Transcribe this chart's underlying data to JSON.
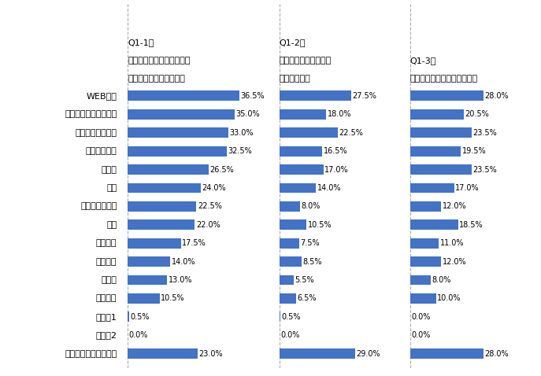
{
  "categories": [
    "WEB広告",
    "会社案内パンフレット",
    "展示会・セミナー",
    "製品カタログ",
    "テレビ",
    "新聞",
    "ノベルティ制作",
    "雑誌",
    "動画制作",
    "屋外広告",
    "ラジオ",
    "交通広告",
    "その他1",
    "その他2",
    "あてはまるものはない"
  ],
  "q1": [
    36.5,
    35.0,
    33.0,
    32.5,
    26.5,
    24.0,
    22.5,
    22.0,
    17.5,
    14.0,
    13.0,
    10.5,
    0.5,
    0.0,
    23.0
  ],
  "q2": [
    27.5,
    18.0,
    22.5,
    16.5,
    17.0,
    14.0,
    8.0,
    10.5,
    7.5,
    8.5,
    5.5,
    6.5,
    0.5,
    0.0,
    29.0
  ],
  "q3": [
    28.0,
    20.5,
    23.5,
    19.5,
    23.5,
    17.0,
    12.0,
    18.5,
    11.0,
    12.0,
    8.0,
    10.0,
    0.0,
    0.0,
    28.0
  ],
  "bar_color": "#4472C4",
  "q1_title_line1": "Q1-1：",
  "q1_title_line2": "実施している施策、または",
  "q1_title_line3": "実施したことのある施策",
  "q2_title_line1": "Q1-2：",
  "q2_title_line2": "実施した中で、効果が",
  "q2_title_line3": "良かった施策",
  "q3_title_line1": "Q1-3：",
  "q3_title_line2": "今後、実施したいと思う施策",
  "q3_title_line3": "",
  "max_val": 40,
  "bg_color": "#ffffff",
  "label_fontsize": 7,
  "title_fontsize": 8,
  "category_fontsize": 8,
  "dashed_line_color": "#aaaaaa"
}
